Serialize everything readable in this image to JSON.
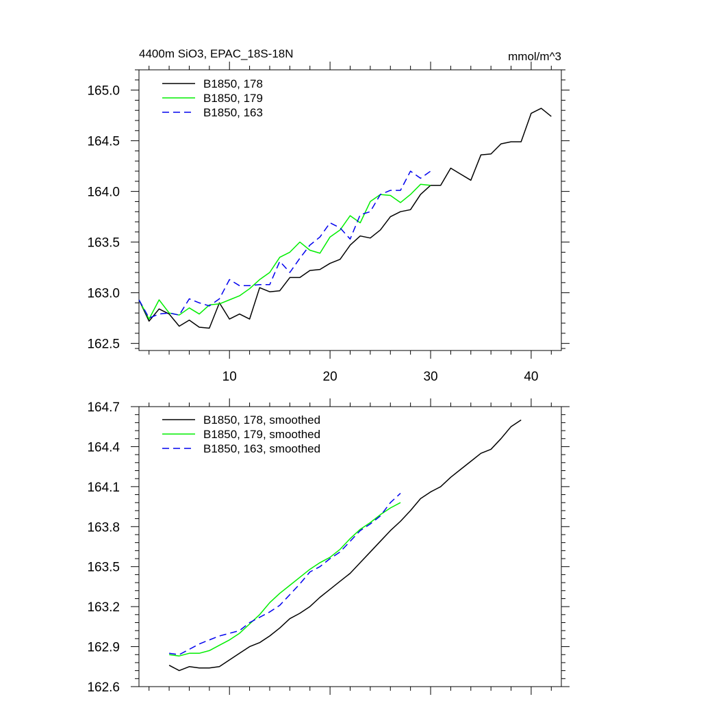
{
  "chart_data": [
    {
      "type": "line",
      "title": "4400m SiO3, EPAC_18S-18N",
      "units": "mmol/m^3",
      "xlim": [
        1,
        43
      ],
      "ylim": [
        162.43,
        165.2
      ],
      "x_ticks": [
        10,
        20,
        30,
        40
      ],
      "x_tick_labels": [
        "10",
        "20",
        "30",
        "40"
      ],
      "y_ticks": [
        162.5,
        163.0,
        163.5,
        164.0,
        164.5,
        165.0
      ],
      "y_tick_labels": [
        "162.5",
        "163.0",
        "163.5",
        "164.0",
        "164.5",
        "165.0"
      ],
      "legend_position": "top-left",
      "series": [
        {
          "name": "B1850, 178",
          "color": "#000000",
          "dash": "solid",
          "x": [
            1,
            2,
            3,
            4,
            5,
            6,
            7,
            8,
            9,
            10,
            11,
            12,
            13,
            14,
            15,
            16,
            17,
            18,
            19,
            20,
            21,
            22,
            23,
            24,
            25,
            26,
            27,
            28,
            29,
            30,
            31,
            32,
            33,
            34,
            35,
            36,
            37,
            38,
            39,
            40,
            41,
            42
          ],
          "values": [
            162.93,
            162.72,
            162.84,
            162.79,
            162.67,
            162.73,
            162.66,
            162.65,
            162.9,
            162.74,
            162.79,
            162.74,
            163.05,
            163.01,
            163.02,
            163.15,
            163.15,
            163.22,
            163.23,
            163.29,
            163.33,
            163.47,
            163.56,
            163.54,
            163.62,
            163.75,
            163.8,
            163.82,
            163.97,
            164.06,
            164.06,
            164.23,
            164.17,
            164.11,
            164.36,
            164.37,
            164.47,
            164.49,
            164.49,
            164.77,
            164.82,
            164.74
          ]
        },
        {
          "name": "B1850, 179",
          "color": "#00ee00",
          "dash": "solid",
          "x": [
            1,
            2,
            3,
            4,
            5,
            6,
            7,
            8,
            9,
            10,
            11,
            12,
            13,
            14,
            15,
            16,
            17,
            18,
            19,
            20,
            21,
            22,
            23,
            24,
            25,
            26,
            27,
            28,
            29,
            30
          ],
          "values": [
            162.93,
            162.74,
            162.93,
            162.8,
            162.78,
            162.85,
            162.79,
            162.88,
            162.89,
            162.93,
            162.97,
            163.04,
            163.13,
            163.2,
            163.35,
            163.4,
            163.5,
            163.42,
            163.39,
            163.55,
            163.62,
            163.76,
            163.69,
            163.9,
            163.97,
            163.96,
            163.89,
            163.97,
            164.07,
            164.06
          ]
        },
        {
          "name": "B1850, 163",
          "color": "#0000ee",
          "dash": "dashed",
          "x": [
            1,
            2,
            3,
            4,
            5,
            6,
            7,
            8,
            9,
            10,
            11,
            12,
            13,
            14,
            15,
            16,
            17,
            18,
            19,
            20,
            21,
            22,
            23,
            24,
            25,
            26,
            27,
            28,
            29,
            30
          ],
          "values": [
            162.93,
            162.75,
            162.79,
            162.8,
            162.78,
            162.94,
            162.9,
            162.87,
            162.94,
            163.13,
            163.07,
            163.07,
            163.08,
            163.08,
            163.31,
            163.2,
            163.34,
            163.47,
            163.55,
            163.69,
            163.64,
            163.53,
            163.77,
            163.8,
            163.97,
            164.01,
            164.01,
            164.2,
            164.13,
            164.2
          ]
        }
      ]
    },
    {
      "type": "line",
      "xlim": [
        1,
        43
      ],
      "ylim": [
        162.6,
        164.7
      ],
      "x_ticks": [
        10,
        20,
        30,
        40
      ],
      "y_ticks": [
        162.6,
        162.9,
        163.2,
        163.5,
        163.8,
        164.1,
        164.4,
        164.7
      ],
      "y_tick_labels": [
        "162.6",
        "162.9",
        "163.2",
        "163.5",
        "163.8",
        "164.1",
        "164.4",
        "164.7"
      ],
      "legend_position": "top-left",
      "series": [
        {
          "name": "B1850, 178, smoothed",
          "color": "#000000",
          "dash": "solid",
          "x": [
            4,
            5,
            6,
            7,
            8,
            9,
            10,
            11,
            12,
            13,
            14,
            15,
            16,
            17,
            18,
            19,
            20,
            21,
            22,
            23,
            24,
            25,
            26,
            27,
            28,
            29,
            30,
            31,
            32,
            33,
            34,
            35,
            36,
            37,
            38,
            39
          ],
          "values": [
            162.76,
            162.72,
            162.75,
            162.74,
            162.74,
            162.75,
            162.8,
            162.85,
            162.9,
            162.93,
            162.98,
            163.04,
            163.11,
            163.15,
            163.2,
            163.27,
            163.33,
            163.39,
            163.45,
            163.53,
            163.61,
            163.69,
            163.77,
            163.84,
            163.92,
            164.01,
            164.06,
            164.1,
            164.17,
            164.23,
            164.29,
            164.35,
            164.38,
            164.46,
            164.55,
            164.6
          ]
        },
        {
          "name": "B1850, 179, smoothed",
          "color": "#00ee00",
          "dash": "solid",
          "x": [
            4,
            5,
            6,
            7,
            8,
            9,
            10,
            11,
            12,
            13,
            14,
            15,
            16,
            17,
            18,
            19,
            20,
            21,
            22,
            23,
            24,
            25,
            26,
            27
          ],
          "values": [
            162.84,
            162.83,
            162.85,
            162.85,
            162.87,
            162.91,
            162.95,
            163.0,
            163.07,
            163.14,
            163.23,
            163.3,
            163.36,
            163.42,
            163.48,
            163.53,
            163.57,
            163.63,
            163.71,
            163.78,
            163.83,
            163.89,
            163.94,
            163.98
          ]
        },
        {
          "name": "B1850, 163, smoothed",
          "color": "#0000ee",
          "dash": "dashed",
          "x": [
            4,
            5,
            6,
            7,
            8,
            9,
            10,
            11,
            12,
            13,
            14,
            15,
            16,
            17,
            18,
            19,
            20,
            21,
            22,
            23,
            24,
            25,
            26,
            27
          ],
          "values": [
            162.85,
            162.84,
            162.88,
            162.92,
            162.95,
            162.98,
            163.0,
            163.02,
            163.08,
            163.12,
            163.16,
            163.21,
            163.29,
            163.37,
            163.46,
            163.5,
            163.56,
            163.61,
            163.69,
            163.77,
            163.82,
            163.88,
            163.98,
            164.05
          ]
        }
      ]
    }
  ]
}
